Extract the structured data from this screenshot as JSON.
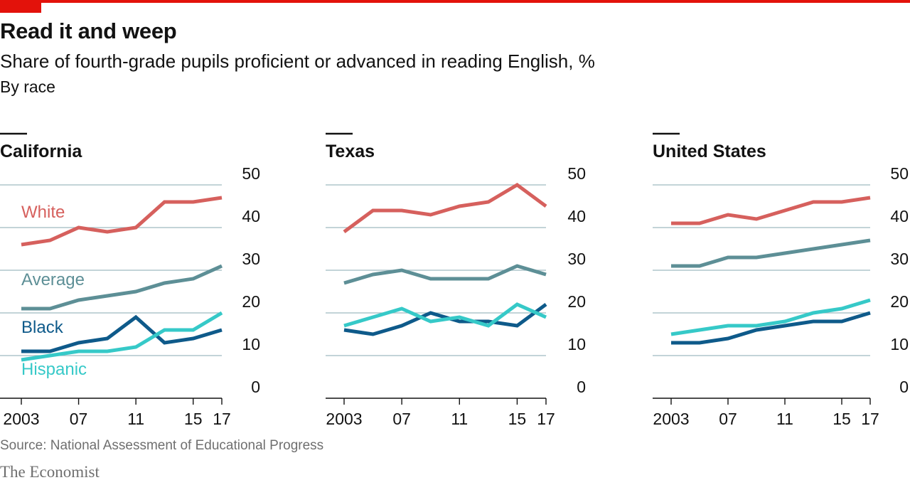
{
  "header": {
    "title": "Read it and weep",
    "subtitle": "Share of fourth-grade pupils proficient or advanced in reading English, %",
    "byline": "By race"
  },
  "footer": {
    "source": "Source: National Assessment of Educational Progress",
    "brand": "The Economist"
  },
  "colors": {
    "White": "#d6605d",
    "Average": "#5d8f96",
    "Black": "#0e5a8a",
    "Hispanic": "#36c9c8",
    "accent": "#e3120b",
    "grid": "#9fbac0"
  },
  "chart_data": [
    {
      "type": "line",
      "title": "California",
      "x": [
        2003,
        2005,
        2007,
        2009,
        2011,
        2013,
        2015,
        2017
      ],
      "xticks": [
        "2003",
        "07",
        "11",
        "15",
        "17"
      ],
      "xtick_values": [
        2003,
        2007,
        2011,
        2015,
        2017
      ],
      "yticks": [
        "0",
        "10",
        "20",
        "30",
        "40",
        "50"
      ],
      "ylim": [
        0,
        50
      ],
      "series": [
        {
          "name": "White",
          "values": [
            36,
            37,
            40,
            39,
            40,
            46,
            46,
            47
          ]
        },
        {
          "name": "Average",
          "values": [
            21,
            21,
            23,
            24,
            25,
            27,
            28,
            31
          ]
        },
        {
          "name": "Black",
          "values": [
            11,
            11,
            13,
            14,
            19,
            13,
            14,
            16
          ]
        },
        {
          "name": "Hispanic",
          "values": [
            9,
            10,
            11,
            11,
            12,
            16,
            16,
            20
          ]
        }
      ],
      "labels": [
        "White",
        "Average",
        "Black",
        "Hispanic"
      ]
    },
    {
      "type": "line",
      "title": "Texas",
      "x": [
        2003,
        2005,
        2007,
        2009,
        2011,
        2013,
        2015,
        2017
      ],
      "xticks": [
        "2003",
        "07",
        "11",
        "15",
        "17"
      ],
      "xtick_values": [
        2003,
        2007,
        2011,
        2015,
        2017
      ],
      "yticks": [
        "0",
        "10",
        "20",
        "30",
        "40",
        "50"
      ],
      "ylim": [
        0,
        50
      ],
      "series": [
        {
          "name": "White",
          "values": [
            39,
            44,
            44,
            43,
            45,
            46,
            50,
            45
          ]
        },
        {
          "name": "Average",
          "values": [
            27,
            29,
            30,
            28,
            28,
            28,
            31,
            29
          ]
        },
        {
          "name": "Black",
          "values": [
            16,
            15,
            17,
            20,
            18,
            18,
            17,
            22
          ]
        },
        {
          "name": "Hispanic",
          "values": [
            17,
            19,
            21,
            18,
            19,
            17,
            22,
            19
          ]
        }
      ]
    },
    {
      "type": "line",
      "title": "United States",
      "x": [
        2003,
        2005,
        2007,
        2009,
        2011,
        2013,
        2015,
        2017
      ],
      "xticks": [
        "2003",
        "07",
        "11",
        "15",
        "17"
      ],
      "xtick_values": [
        2003,
        2007,
        2011,
        2015,
        2017
      ],
      "yticks": [
        "0",
        "10",
        "20",
        "30",
        "40",
        "50"
      ],
      "ylim": [
        0,
        50
      ],
      "series": [
        {
          "name": "White",
          "values": [
            41,
            41,
            43,
            42,
            44,
            46,
            46,
            47
          ]
        },
        {
          "name": "Average",
          "values": [
            31,
            31,
            33,
            33,
            34,
            35,
            36,
            37
          ]
        },
        {
          "name": "Black",
          "values": [
            13,
            13,
            14,
            16,
            17,
            18,
            18,
            20
          ]
        },
        {
          "name": "Hispanic",
          "values": [
            15,
            16,
            17,
            17,
            18,
            20,
            21,
            23
          ]
        }
      ]
    }
  ]
}
